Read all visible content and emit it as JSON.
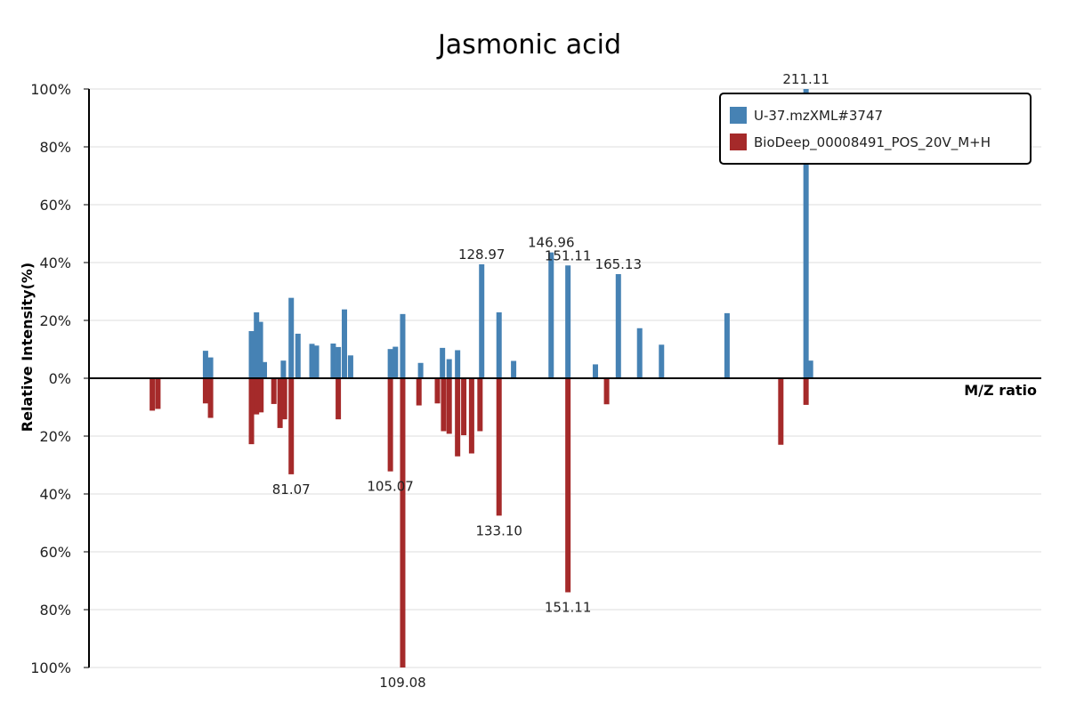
{
  "colors": {
    "sample": "#4682b4",
    "reference": "#a52a2a",
    "grid": "#dddddd",
    "axis": "#000000"
  },
  "chart_data": {
    "type": "bar",
    "title": "Jasmonic acid",
    "xlabel": "M/Z ratio",
    "ylabel": "Relative Intensity(%)",
    "xlim": [
      50,
      220
    ],
    "ylim": [
      -100,
      100
    ],
    "y_ticks": [
      {
        "value": 100,
        "label": "100%"
      },
      {
        "value": 80,
        "label": "80%"
      },
      {
        "value": 60,
        "label": "60%"
      },
      {
        "value": 40,
        "label": "40%"
      },
      {
        "value": 20,
        "label": "20%"
      },
      {
        "value": 0,
        "label": "0%"
      },
      {
        "value": -20,
        "label": "20%"
      },
      {
        "value": -40,
        "label": "40%"
      },
      {
        "value": -60,
        "label": "60%"
      },
      {
        "value": -80,
        "label": "80%"
      },
      {
        "value": -100,
        "label": "100%"
      }
    ],
    "grid": true,
    "legend_position": "top-right",
    "series": [
      {
        "name": "U-37.mzXML#3747",
        "direction": "up",
        "peaks": [
          {
            "mz": 70.8,
            "intensity": 9.5
          },
          {
            "mz": 71.7,
            "intensity": 7.2
          },
          {
            "mz": 79.0,
            "intensity": 16.3
          },
          {
            "mz": 79.9,
            "intensity": 22.8
          },
          {
            "mz": 80.6,
            "intensity": 19.5
          },
          {
            "mz": 81.3,
            "intensity": 5.6
          },
          {
            "mz": 84.7,
            "intensity": 6.1
          },
          {
            "mz": 86.1,
            "intensity": 27.8
          },
          {
            "mz": 87.3,
            "intensity": 15.4
          },
          {
            "mz": 89.8,
            "intensity": 11.9
          },
          {
            "mz": 90.6,
            "intensity": 11.3
          },
          {
            "mz": 93.6,
            "intensity": 12.0
          },
          {
            "mz": 94.5,
            "intensity": 10.8
          },
          {
            "mz": 95.6,
            "intensity": 23.8
          },
          {
            "mz": 96.7,
            "intensity": 7.9
          },
          {
            "mz": 103.8,
            "intensity": 10.1
          },
          {
            "mz": 104.7,
            "intensity": 10.9
          },
          {
            "mz": 106.0,
            "intensity": 22.2
          },
          {
            "mz": 109.2,
            "intensity": 5.3
          },
          {
            "mz": 113.1,
            "intensity": 10.5
          },
          {
            "mz": 114.3,
            "intensity": 6.6
          },
          {
            "mz": 115.8,
            "intensity": 9.7
          },
          {
            "mz": 120.1,
            "intensity": 39.4,
            "label": "128.97"
          },
          {
            "mz": 123.2,
            "intensity": 22.8
          },
          {
            "mz": 125.8,
            "intensity": 6.0
          },
          {
            "mz": 132.5,
            "intensity": 43.5,
            "label": "146.96"
          },
          {
            "mz": 135.5,
            "intensity": 39.0,
            "label": "151.11"
          },
          {
            "mz": 140.4,
            "intensity": 4.8
          },
          {
            "mz": 144.5,
            "intensity": 36.0,
            "label": "165.13"
          },
          {
            "mz": 148.3,
            "intensity": 17.3
          },
          {
            "mz": 152.2,
            "intensity": 11.6
          },
          {
            "mz": 163.9,
            "intensity": 22.5
          },
          {
            "mz": 178.0,
            "intensity": 100.0,
            "label": "211.11"
          },
          {
            "mz": 178.8,
            "intensity": 6.1
          }
        ]
      },
      {
        "name": "BioDeep_00008491_POS_20V_M+H",
        "direction": "down",
        "peaks": [
          {
            "mz": 61.3,
            "intensity": 11.2
          },
          {
            "mz": 62.3,
            "intensity": 10.6
          },
          {
            "mz": 70.8,
            "intensity": 8.7
          },
          {
            "mz": 71.7,
            "intensity": 13.7
          },
          {
            "mz": 79.0,
            "intensity": 22.8
          },
          {
            "mz": 79.9,
            "intensity": 12.5
          },
          {
            "mz": 80.7,
            "intensity": 11.8
          },
          {
            "mz": 83.0,
            "intensity": 8.9
          },
          {
            "mz": 84.1,
            "intensity": 17.2
          },
          {
            "mz": 84.9,
            "intensity": 14.2
          },
          {
            "mz": 86.1,
            "intensity": 33.2,
            "label": "81.07"
          },
          {
            "mz": 94.5,
            "intensity": 14.2
          },
          {
            "mz": 103.8,
            "intensity": 32.2,
            "label": "105.07"
          },
          {
            "mz": 106.0,
            "intensity": 100.0,
            "label": "109.08"
          },
          {
            "mz": 108.9,
            "intensity": 9.4
          },
          {
            "mz": 112.2,
            "intensity": 8.7
          },
          {
            "mz": 113.3,
            "intensity": 18.3
          },
          {
            "mz": 114.3,
            "intensity": 19.2
          },
          {
            "mz": 115.8,
            "intensity": 27.0
          },
          {
            "mz": 116.9,
            "intensity": 19.7
          },
          {
            "mz": 118.3,
            "intensity": 26.0
          },
          {
            "mz": 119.8,
            "intensity": 18.3
          },
          {
            "mz": 123.2,
            "intensity": 47.5,
            "label": "133.10"
          },
          {
            "mz": 135.5,
            "intensity": 74.0,
            "label": "151.11"
          },
          {
            "mz": 142.4,
            "intensity": 9.0
          },
          {
            "mz": 173.5,
            "intensity": 23.0
          },
          {
            "mz": 178.0,
            "intensity": 9.2
          }
        ]
      }
    ]
  }
}
